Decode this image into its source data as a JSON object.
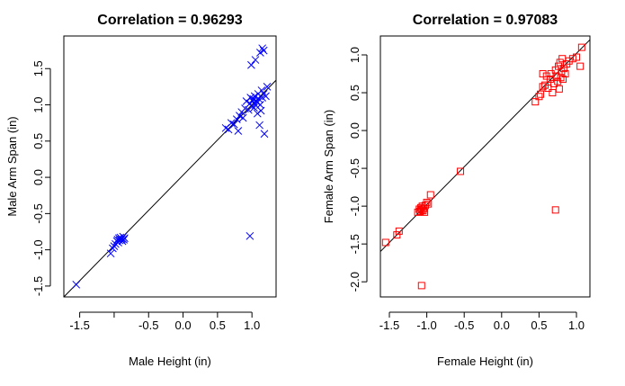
{
  "chart_data": [
    {
      "type": "scatter",
      "title": "Correlation = 0.96293",
      "xlabel": "Male Height (in)",
      "ylabel": "Male Arm Span (in)",
      "xlim": [
        -1.73,
        1.35
      ],
      "ylim": [
        -1.65,
        1.95
      ],
      "x_ticks": [
        -1.5,
        -1.0,
        -0.5,
        0.0,
        0.5,
        1.0
      ],
      "x_tick_labels": [
        "-1.5",
        "",
        "-0.5",
        "0.0",
        "0.5",
        "1.0"
      ],
      "y_ticks": [
        -1.5,
        -1.0,
        -0.5,
        0.0,
        0.5,
        1.0,
        1.5
      ],
      "y_tick_labels": [
        "-1.5",
        "-1.0",
        "-0.5",
        "0.0",
        "0.5",
        "1.0",
        "1.5"
      ],
      "marker": "x",
      "color": "#0000ff",
      "fit_line": {
        "from": [
          -1.73,
          -1.65
        ],
        "to": [
          1.35,
          1.34
        ]
      },
      "series": [
        {
          "values": [
            [
              -1.55,
              -1.48
            ],
            [
              -1.05,
              -1.05
            ],
            [
              -1.02,
              -0.98
            ],
            [
              -1.0,
              -0.95
            ],
            [
              -0.98,
              -0.92
            ],
            [
              -0.96,
              -0.88
            ],
            [
              -0.95,
              -0.86
            ],
            [
              -0.94,
              -0.9
            ],
            [
              -0.93,
              -0.84
            ],
            [
              -0.92,
              -0.87
            ],
            [
              -0.91,
              -0.83
            ],
            [
              -0.9,
              -0.86
            ],
            [
              -0.89,
              -0.85
            ],
            [
              -0.88,
              -0.88
            ],
            [
              -0.87,
              -0.82
            ],
            [
              -0.86,
              -0.86
            ],
            [
              -0.85,
              -0.84
            ],
            [
              0.62,
              0.68
            ],
            [
              0.66,
              0.66
            ],
            [
              0.7,
              0.75
            ],
            [
              0.74,
              0.73
            ],
            [
              0.78,
              0.8
            ],
            [
              0.8,
              0.64
            ],
            [
              0.82,
              0.85
            ],
            [
              0.85,
              0.9
            ],
            [
              0.87,
              0.82
            ],
            [
              0.9,
              0.95
            ],
            [
              0.92,
              1.05
            ],
            [
              0.95,
              0.93
            ],
            [
              0.97,
              1.02
            ],
            [
              0.98,
              1.1
            ],
            [
              1.0,
              0.98
            ],
            [
              1.01,
              1.05
            ],
            [
              1.02,
              1.08
            ],
            [
              1.03,
              0.96
            ],
            [
              1.04,
              1.12
            ],
            [
              1.05,
              1.0
            ],
            [
              1.06,
              1.06
            ],
            [
              1.07,
              1.04
            ],
            [
              1.08,
              0.88
            ],
            [
              1.09,
              1.15
            ],
            [
              1.1,
              1.08
            ],
            [
              1.11,
              0.72
            ],
            [
              1.12,
              1.0
            ],
            [
              1.13,
              0.92
            ],
            [
              1.14,
              1.2
            ],
            [
              1.15,
              1.1
            ],
            [
              1.17,
              1.15
            ],
            [
              1.18,
              0.6
            ],
            [
              1.2,
              1.12
            ],
            [
              1.22,
              1.25
            ],
            [
              0.99,
              1.55
            ],
            [
              1.05,
              1.62
            ],
            [
              1.12,
              1.72
            ],
            [
              1.15,
              1.78
            ],
            [
              1.17,
              1.75
            ],
            [
              0.97,
              -0.81
            ]
          ]
        }
      ]
    },
    {
      "type": "scatter",
      "title": "Correlation = 0.97083",
      "xlabel": "Female Height (in)",
      "ylabel": "Female Arm Span (in)",
      "xlim": [
        -1.62,
        1.18
      ],
      "ylim": [
        -2.2,
        1.25
      ],
      "x_ticks": [
        -1.5,
        -1.0,
        -0.5,
        0.0,
        0.5,
        1.0
      ],
      "x_tick_labels": [
        "-1.5",
        "-1.0",
        "-0.5",
        "0.0",
        "0.5",
        "1.0"
      ],
      "y_ticks": [
        -2.0,
        -1.5,
        -1.0,
        -0.5,
        0.0,
        0.5,
        1.0
      ],
      "y_tick_labels": [
        "-2.0",
        "-1.5",
        "-1.0",
        "-0.5",
        "0.0",
        "0.5",
        "1.0"
      ],
      "marker": "square",
      "color": "#ff0000",
      "fit_line": {
        "from": [
          -1.62,
          -1.6
        ],
        "to": [
          1.18,
          1.2
        ]
      },
      "series": [
        {
          "values": [
            [
              -1.55,
              -1.48
            ],
            [
              -1.4,
              -1.38
            ],
            [
              -1.37,
              -1.33
            ],
            [
              -1.12,
              -1.08
            ],
            [
              -1.1,
              -1.04
            ],
            [
              -1.09,
              -1.07
            ],
            [
              -1.08,
              -1.02
            ],
            [
              -1.07,
              -1.05
            ],
            [
              -1.06,
              -1.0
            ],
            [
              -1.05,
              -1.06
            ],
            [
              -1.04,
              -1.03
            ],
            [
              -1.03,
              -1.08
            ],
            [
              -1.02,
              -0.99
            ],
            [
              -1.0,
              -0.95
            ],
            [
              -0.98,
              -0.97
            ],
            [
              -0.95,
              -0.85
            ],
            [
              -0.55,
              -0.54
            ],
            [
              -1.07,
              -2.05
            ],
            [
              0.72,
              -1.05
            ],
            [
              0.45,
              0.38
            ],
            [
              0.5,
              0.45
            ],
            [
              0.52,
              0.48
            ],
            [
              0.55,
              0.58
            ],
            [
              0.58,
              0.6
            ],
            [
              0.62,
              0.56
            ],
            [
              0.65,
              0.68
            ],
            [
              0.66,
              0.75
            ],
            [
              0.68,
              0.5
            ],
            [
              0.7,
              0.62
            ],
            [
              0.72,
              0.8
            ],
            [
              0.73,
              0.72
            ],
            [
              0.75,
              0.65
            ],
            [
              0.76,
              0.85
            ],
            [
              0.77,
              0.55
            ],
            [
              0.78,
              0.9
            ],
            [
              0.79,
              0.7
            ],
            [
              0.8,
              0.78
            ],
            [
              0.81,
              0.95
            ],
            [
              0.82,
              0.68
            ],
            [
              0.83,
              0.82
            ],
            [
              0.85,
              0.75
            ],
            [
              0.87,
              0.88
            ],
            [
              0.9,
              0.92
            ],
            [
              0.95,
              0.95
            ],
            [
              1.0,
              0.97
            ],
            [
              1.05,
              0.85
            ],
            [
              1.07,
              1.1
            ],
            [
              0.55,
              0.75
            ],
            [
              0.6,
              0.72
            ]
          ]
        }
      ]
    }
  ]
}
